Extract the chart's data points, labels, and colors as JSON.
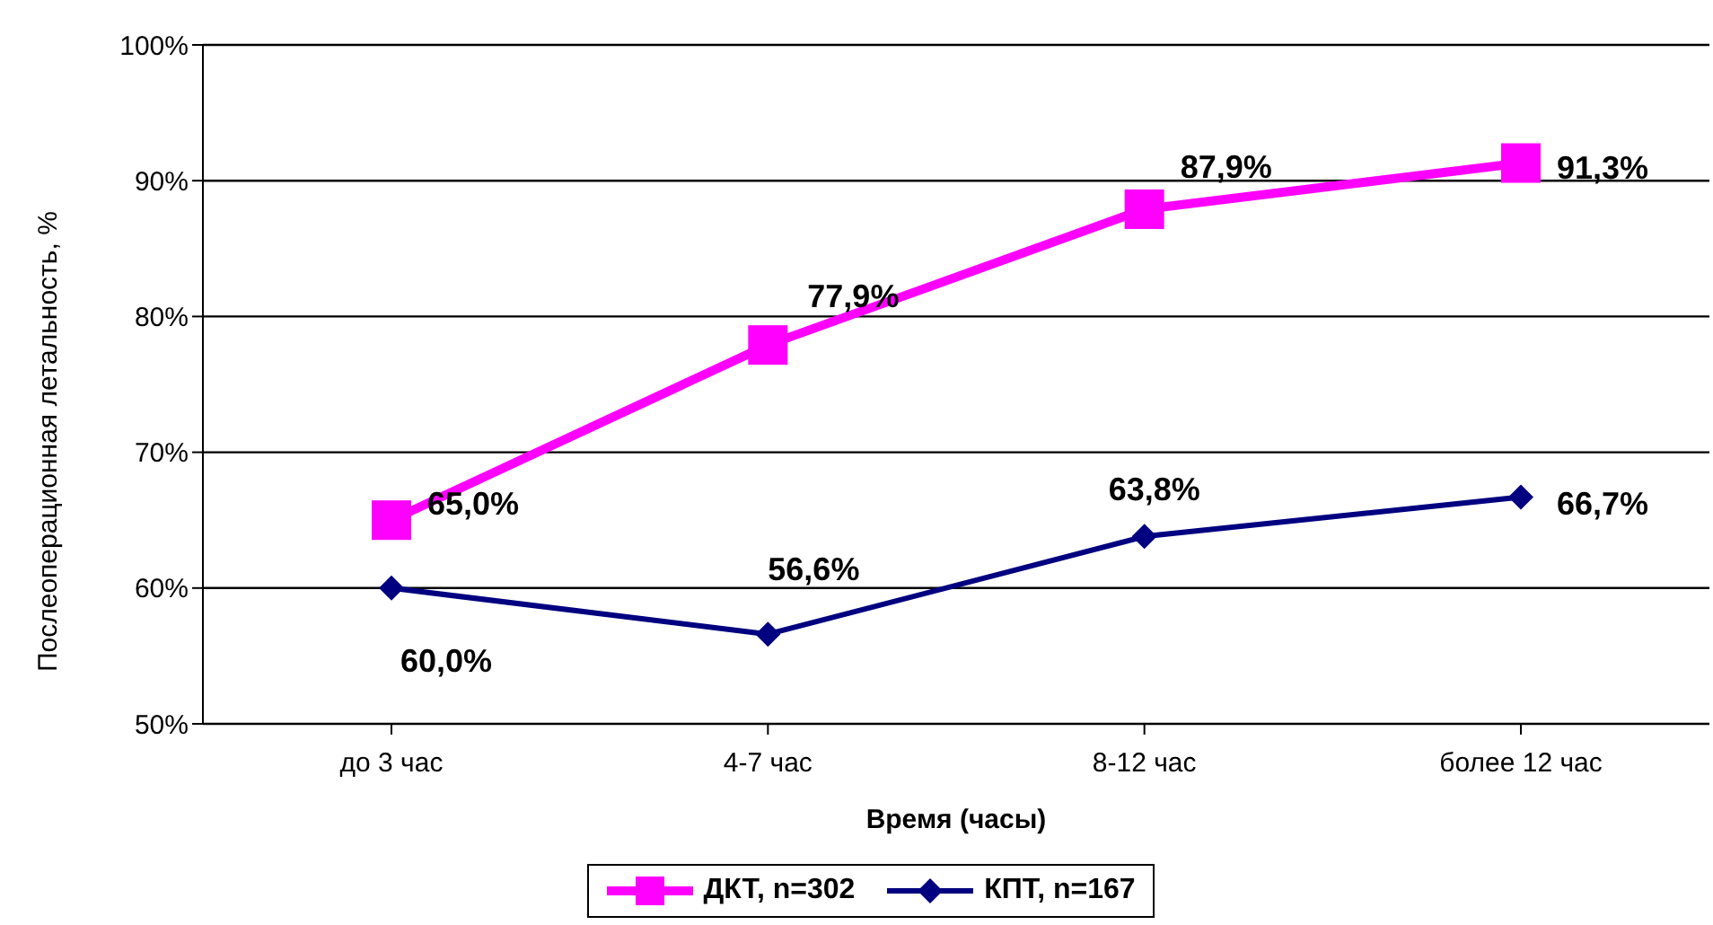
{
  "chart_data": {
    "type": "line",
    "xlabel": "Время (часы)",
    "ylabel": "Послеоперационная летальность, %",
    "categories": [
      "до 3 час",
      "4-7 час",
      "8-12 час",
      "более 12 час"
    ],
    "series": [
      {
        "name": "ДКТ, n=302",
        "color": "#ff00ff",
        "marker": "square",
        "values": [
          65.0,
          77.9,
          87.9,
          91.3
        ],
        "value_labels": [
          "65,0%",
          "77,9%",
          "87,9%",
          "91,3%"
        ]
      },
      {
        "name": "КПТ, n=167",
        "color": "#000080",
        "marker": "diamond",
        "values": [
          60.0,
          56.6,
          63.8,
          66.7
        ],
        "value_labels": [
          "60,0%",
          "56,6%",
          "63,8%",
          "66,7%"
        ]
      }
    ],
    "ylim": [
      50,
      100
    ],
    "yticks": [
      {
        "value": 50,
        "label": "50%"
      },
      {
        "value": 60,
        "label": "60%"
      },
      {
        "value": 70,
        "label": "70%"
      },
      {
        "value": 80,
        "label": "80%"
      },
      {
        "value": 90,
        "label": "90%"
      },
      {
        "value": 100,
        "label": "100%"
      }
    ],
    "grid": "y",
    "legend": "bottom",
    "line_style": "solid"
  }
}
